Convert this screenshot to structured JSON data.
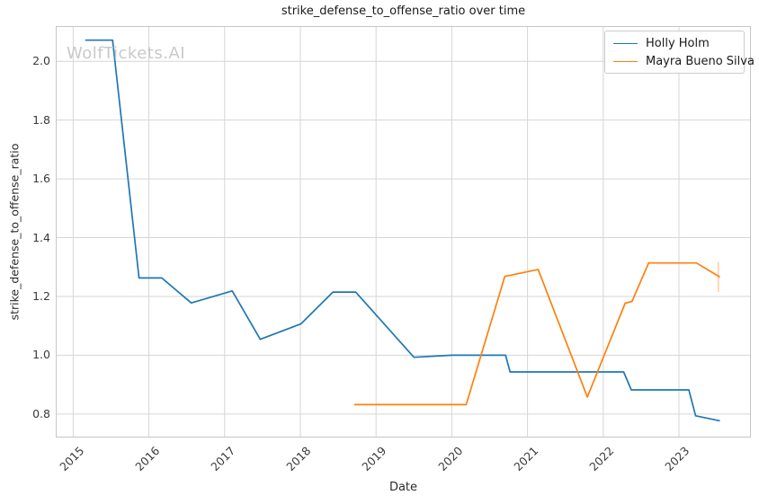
{
  "figure": {
    "title": "strike_defense_to_offense_ratio over time",
    "watermark": "WolfTickets.AI",
    "background": "#ffffff"
  },
  "colors": {
    "holly_holm": "#1f77b4",
    "mayra_bueno_silva": "#ff7f0e",
    "grid": "#d6d6d6",
    "spine": "#c6c6c6",
    "tick_text": "#3a3a3a",
    "title_text": "#1a1a1a",
    "watermark_text": "#c9c9c9"
  },
  "chart_data": {
    "type": "line",
    "title": "strike_defense_to_offense_ratio over time",
    "xlabel": "Date",
    "ylabel": "strike_defense_to_offense_ratio",
    "x_ticks": [
      2015,
      2016,
      2017,
      2018,
      2019,
      2020,
      2021,
      2022,
      2023
    ],
    "x_tick_labels": [
      "2015",
      "2016",
      "2017",
      "2018",
      "2019",
      "2020",
      "2021",
      "2022",
      "2023"
    ],
    "y_ticks": [
      0.8,
      1.0,
      1.2,
      1.4,
      1.6,
      1.8,
      2.0
    ],
    "y_tick_labels": [
      "0.8",
      "1.0",
      "1.2",
      "1.4",
      "1.6",
      "1.8",
      "2.0"
    ],
    "xlim": [
      2014.77,
      2023.95
    ],
    "ylim": [
      0.72,
      2.12
    ],
    "grid": true,
    "legend_position": "upper right",
    "series": [
      {
        "name": "Holly Holm",
        "color": "#1f77b4",
        "points": [
          [
            2015.16,
            2.072
          ],
          [
            2015.52,
            2.072
          ],
          [
            2015.87,
            1.263
          ],
          [
            2016.17,
            1.263
          ],
          [
            2016.56,
            1.178
          ],
          [
            2017.1,
            1.219
          ],
          [
            2017.47,
            1.054
          ],
          [
            2018.01,
            1.107
          ],
          [
            2018.43,
            1.215
          ],
          [
            2018.73,
            1.215
          ],
          [
            2019.5,
            0.993
          ],
          [
            2020.0,
            1.0
          ],
          [
            2020.71,
            1.0
          ],
          [
            2020.77,
            0.943
          ],
          [
            2022.27,
            0.943
          ],
          [
            2022.37,
            0.882
          ],
          [
            2023.13,
            0.882
          ],
          [
            2023.22,
            0.794
          ],
          [
            2023.54,
            0.777
          ]
        ]
      },
      {
        "name": "Mayra Bueno Silva",
        "color": "#ff7f0e",
        "points": [
          [
            2018.71,
            0.832
          ],
          [
            2020.19,
            0.832
          ],
          [
            2020.7,
            1.268
          ],
          [
            2021.14,
            1.292
          ],
          [
            2021.79,
            0.858
          ],
          [
            2022.29,
            1.177
          ],
          [
            2022.38,
            1.183
          ],
          [
            2022.6,
            1.314
          ],
          [
            2023.23,
            1.314
          ],
          [
            2023.54,
            1.266
          ]
        ],
        "end_tick": {
          "x": 2023.52,
          "y_top": 1.317,
          "y_bottom": 1.215,
          "opacity": 0.4
        }
      }
    ]
  }
}
